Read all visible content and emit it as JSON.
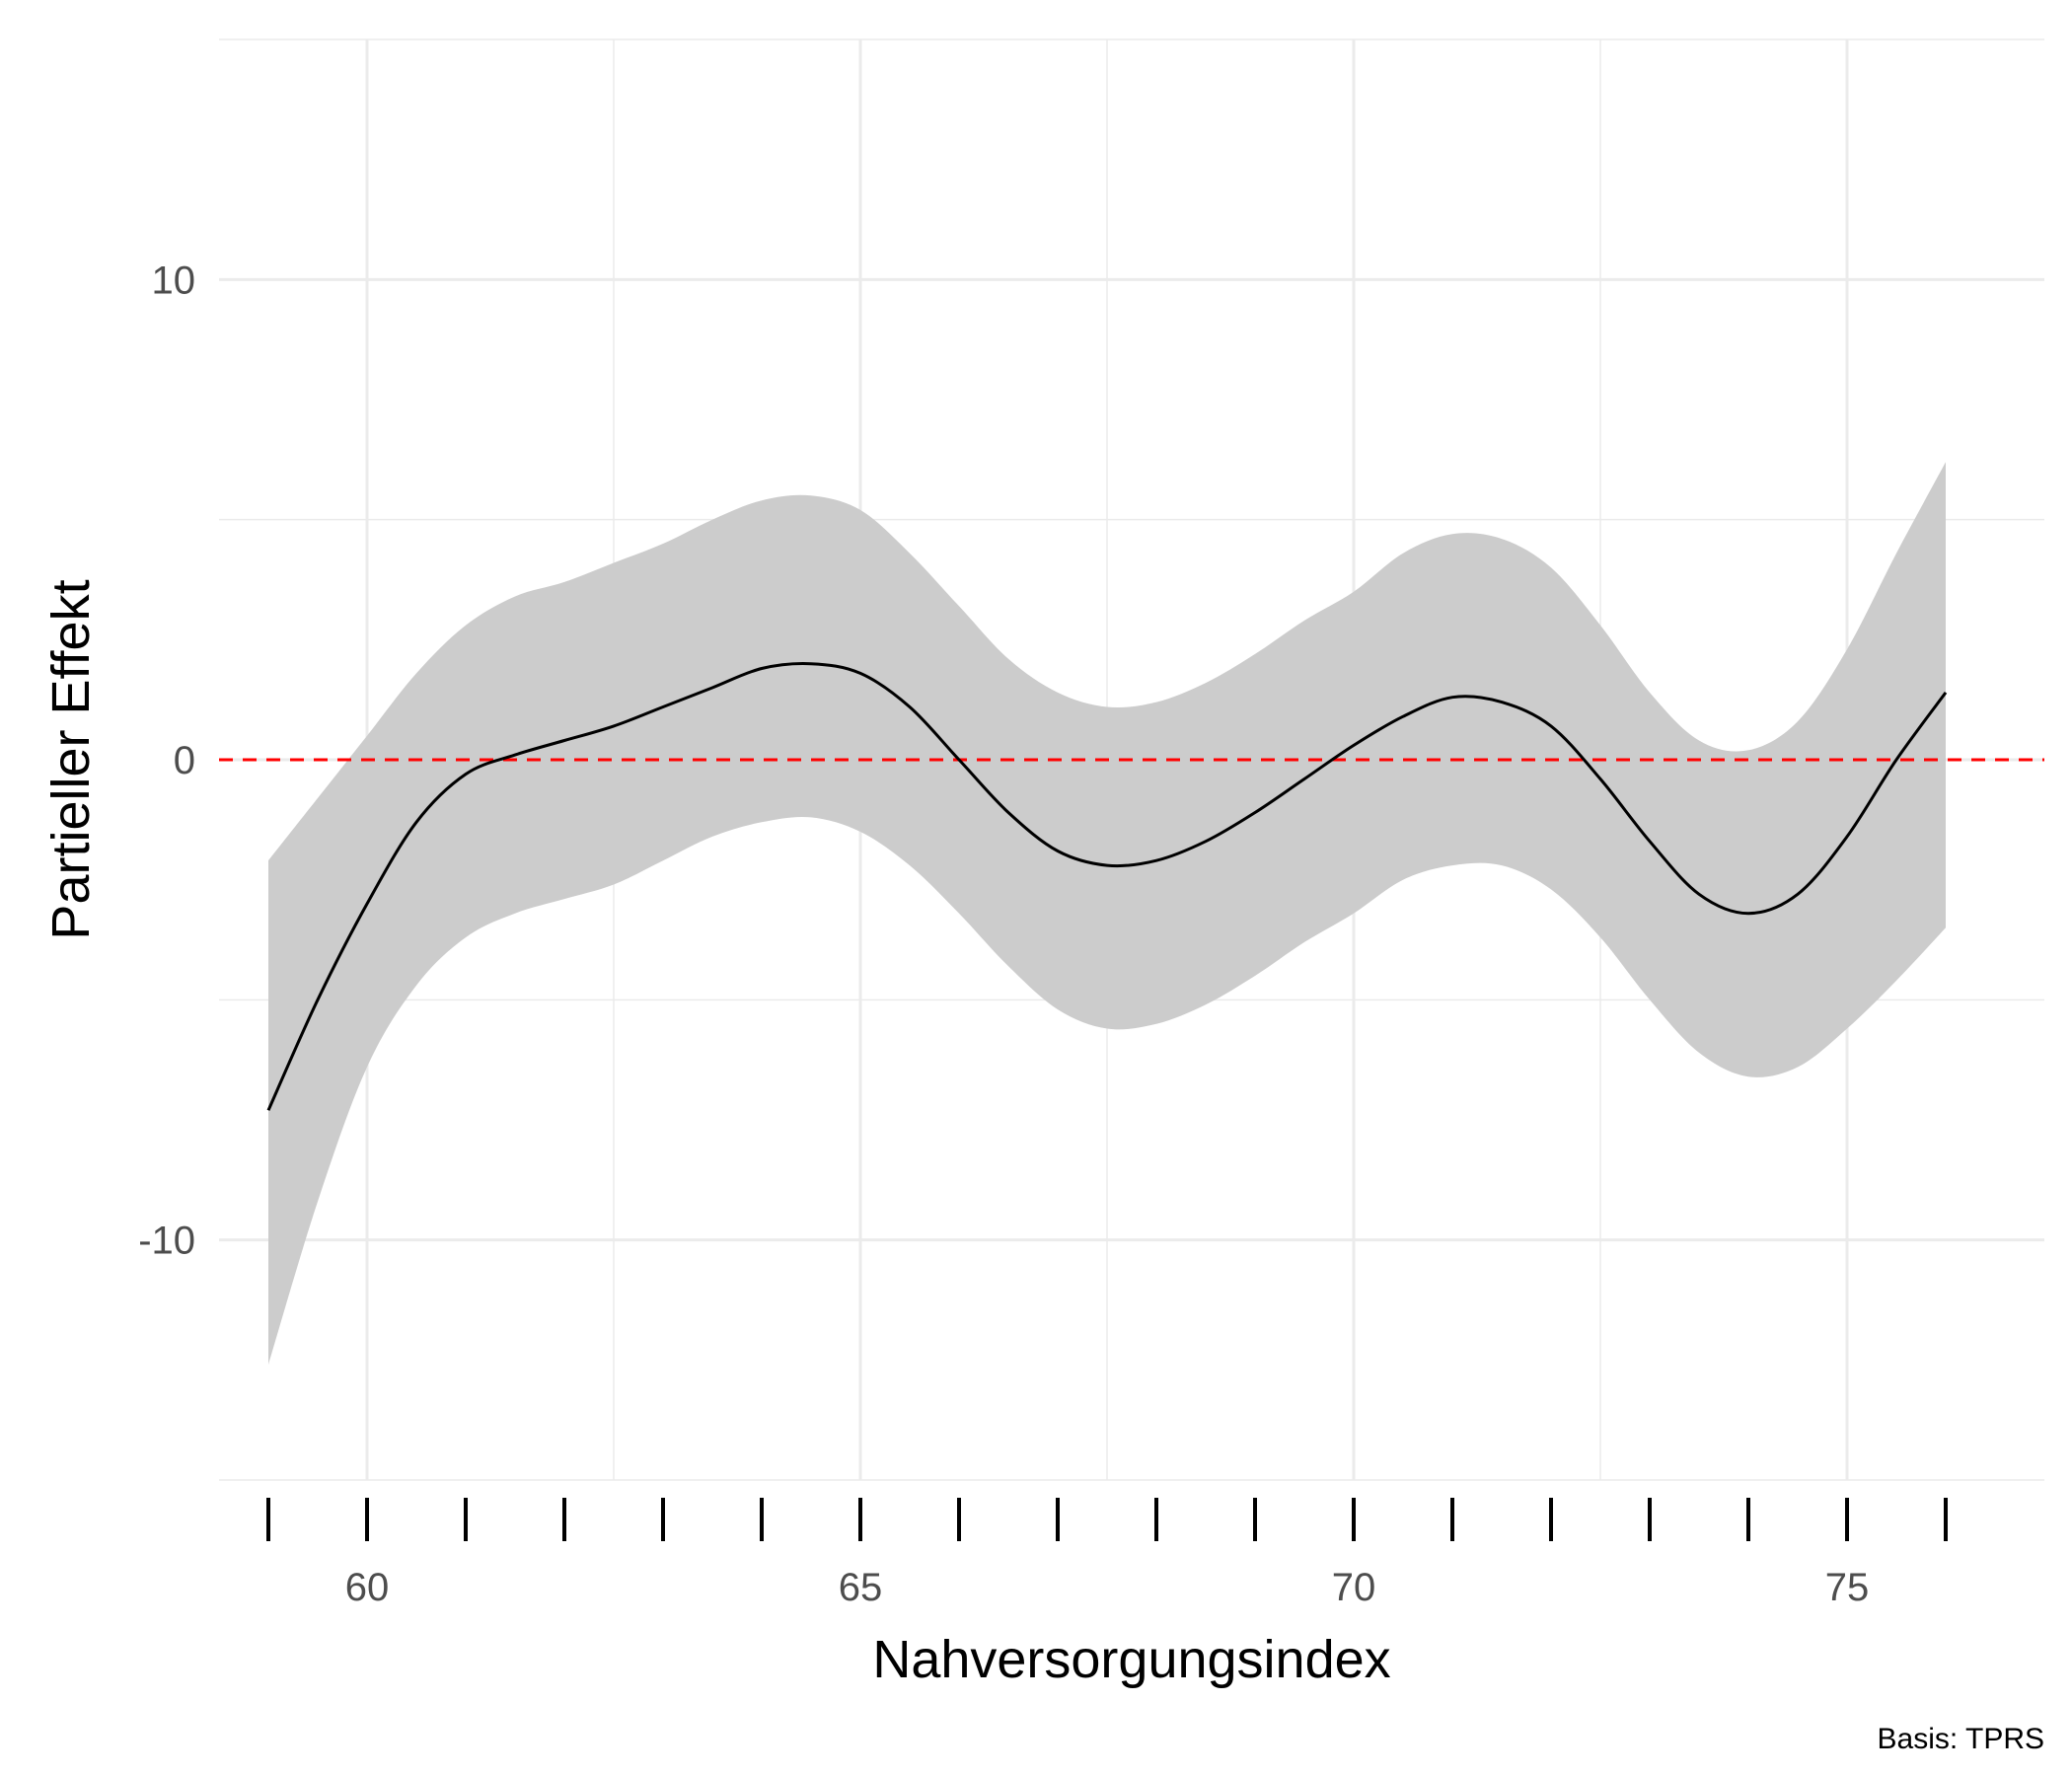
{
  "chart_data": {
    "type": "line",
    "title": "",
    "xlabel": "Nahversorgungsindex",
    "ylabel": "Partieller Effekt",
    "caption": "Basis: TPRS",
    "xlim": [
      58.5,
      77.0
    ],
    "ylim": [
      -15,
      15
    ],
    "x_ticks": [
      60,
      65,
      70,
      75
    ],
    "x_tick_labels": [
      "60",
      "65",
      "70",
      "75"
    ],
    "y_ticks": [
      -10,
      0,
      10
    ],
    "y_tick_labels": [
      "-10",
      "0",
      "10"
    ],
    "grid": true,
    "reference_line": {
      "y": 0,
      "color": "#ff0000",
      "style": "dashed"
    },
    "rug_x": [
      59,
      60,
      61,
      62,
      63,
      64,
      65,
      66,
      67,
      68,
      69,
      70,
      71,
      72,
      73,
      74,
      75,
      76
    ],
    "series": [
      {
        "x": [
          59.0,
          59.5,
          60.0,
          60.5,
          61.0,
          61.5,
          62.0,
          62.5,
          63.0,
          63.5,
          64.0,
          64.5,
          65.0,
          65.5,
          66.0,
          66.5,
          67.0,
          67.5,
          68.0,
          68.5,
          69.0,
          69.5,
          70.0,
          70.5,
          71.0,
          71.5,
          72.0,
          72.5,
          73.0,
          73.5,
          74.0,
          74.5,
          75.0,
          75.5,
          76.0
        ],
        "y": [
          -7.3,
          -5.0,
          -3.0,
          -1.3,
          -0.3,
          0.1,
          0.4,
          0.7,
          1.1,
          1.5,
          1.9,
          2.0,
          1.8,
          1.1,
          0.0,
          -1.1,
          -1.9,
          -2.2,
          -2.1,
          -1.7,
          -1.1,
          -0.4,
          0.3,
          0.9,
          1.3,
          1.2,
          0.7,
          -0.4,
          -1.7,
          -2.8,
          -3.2,
          -2.8,
          -1.6,
          0.0,
          1.4
        ],
        "lower": [
          -12.6,
          -9.2,
          -6.4,
          -4.7,
          -3.7,
          -3.2,
          -2.9,
          -2.6,
          -2.1,
          -1.6,
          -1.3,
          -1.2,
          -1.5,
          -2.2,
          -3.2,
          -4.3,
          -5.2,
          -5.6,
          -5.5,
          -5.1,
          -4.5,
          -3.8,
          -3.2,
          -2.5,
          -2.2,
          -2.2,
          -2.7,
          -3.7,
          -5.0,
          -6.1,
          -6.6,
          -6.4,
          -5.6,
          -4.6,
          -3.5
        ],
        "upper": [
          -2.1,
          -0.8,
          0.5,
          1.8,
          2.8,
          3.4,
          3.7,
          4.1,
          4.5,
          5.0,
          5.4,
          5.5,
          5.2,
          4.3,
          3.2,
          2.1,
          1.4,
          1.1,
          1.2,
          1.6,
          2.2,
          2.9,
          3.5,
          4.3,
          4.7,
          4.6,
          4.0,
          2.8,
          1.4,
          0.4,
          0.2,
          0.8,
          2.3,
          4.3,
          6.2
        ]
      }
    ],
    "colors": {
      "line": "#000000",
      "band": "#cccccc",
      "grid": "#ebebeb",
      "reference": "#ff0000",
      "rug": "#000000"
    }
  }
}
